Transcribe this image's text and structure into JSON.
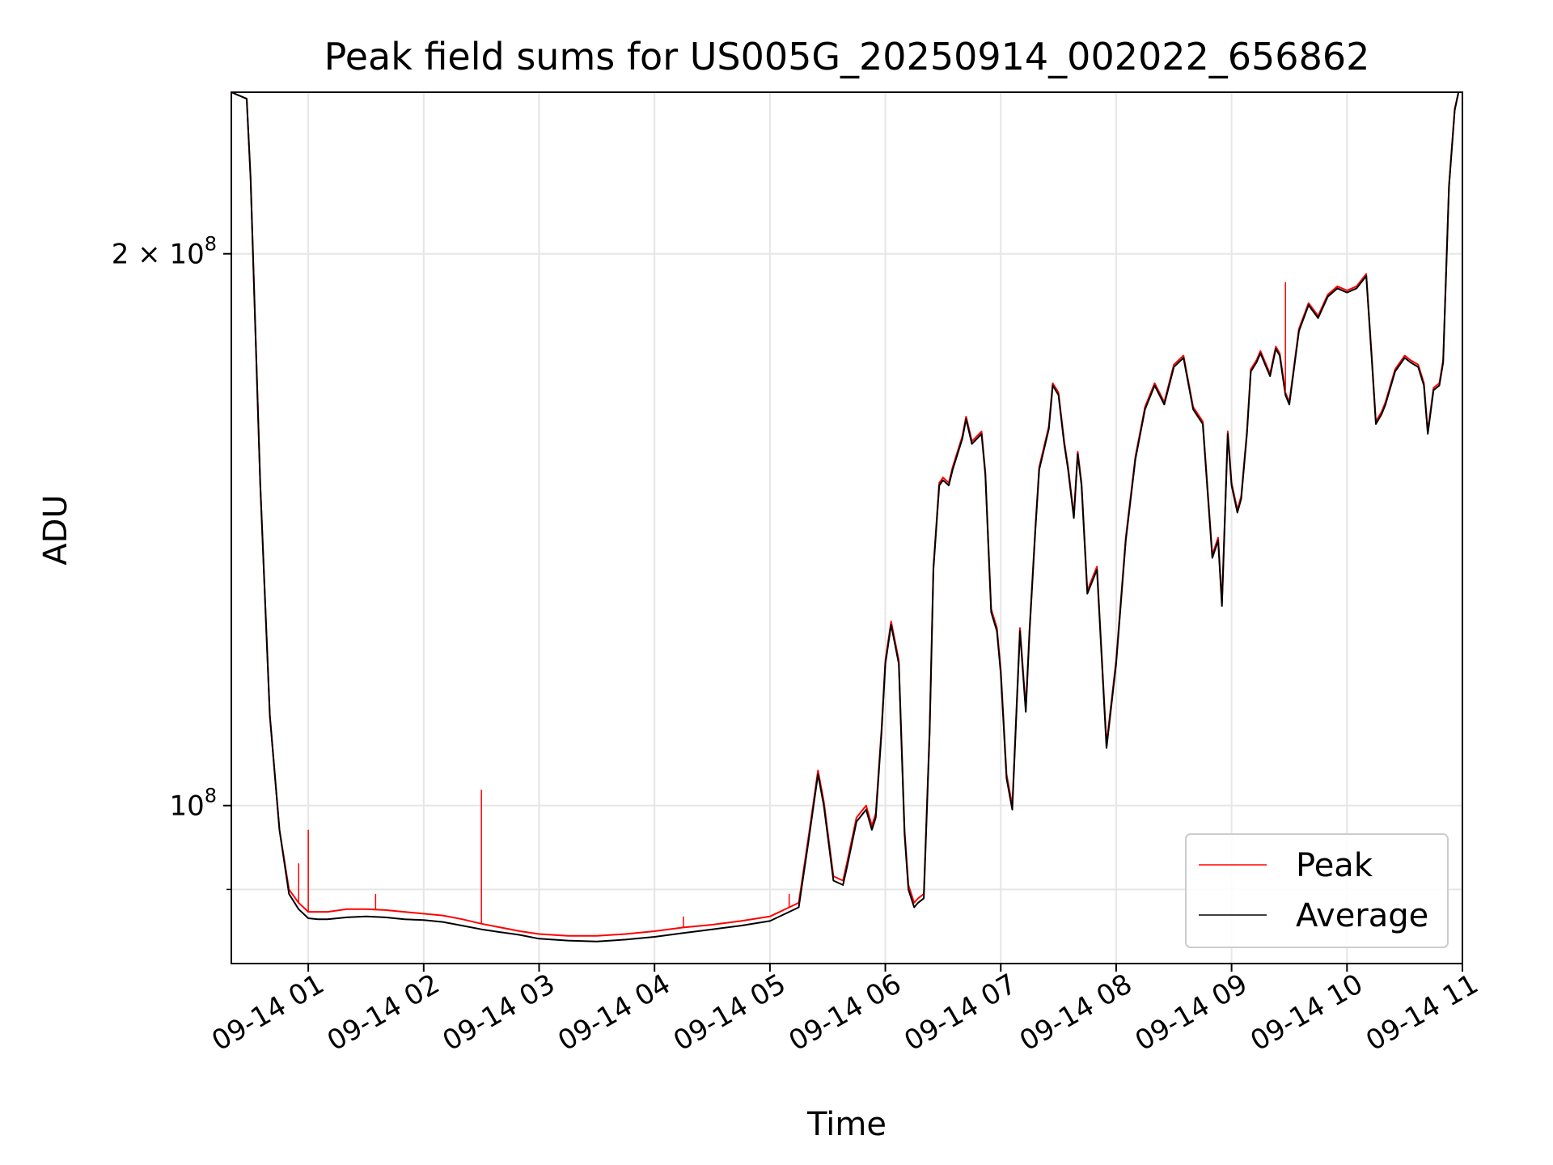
{
  "chart_data": {
    "type": "line",
    "title": "Peak field sums for US005G_20250914_002022_656862",
    "xlabel": "Time",
    "ylabel": "ADU",
    "yscale": "log",
    "ylim": [
      82000000,
      245000000
    ],
    "xlim": [
      "2025-09-14 00:20",
      "2025-09-14 11:00"
    ],
    "grid": true,
    "legend_placement": "lower-right",
    "x_ticks": [
      {
        "at": "2025-09-14 01:00",
        "label": "09-14 01"
      },
      {
        "at": "2025-09-14 02:00",
        "label": "09-14 02"
      },
      {
        "at": "2025-09-14 03:00",
        "label": "09-14 03"
      },
      {
        "at": "2025-09-14 04:00",
        "label": "09-14 04"
      },
      {
        "at": "2025-09-14 05:00",
        "label": "09-14 05"
      },
      {
        "at": "2025-09-14 06:00",
        "label": "09-14 06"
      },
      {
        "at": "2025-09-14 07:00",
        "label": "09-14 07"
      },
      {
        "at": "2025-09-14 08:00",
        "label": "09-14 08"
      },
      {
        "at": "2025-09-14 09:00",
        "label": "09-14 09"
      },
      {
        "at": "2025-09-14 10:00",
        "label": "09-14 10"
      },
      {
        "at": "2025-09-14 11:00",
        "label": "09-14 11"
      }
    ],
    "y_ticks": [
      {
        "value": 200000000,
        "label_base": "2 × 10",
        "label_exp": "8"
      },
      {
        "value": 100000000,
        "label_base": "10",
        "label_exp": "8"
      }
    ],
    "y_minor_ticks": [
      90000000
    ],
    "series": [
      {
        "name": "Peak",
        "color": "#ff0000",
        "x": [
          "00:20",
          "00:28",
          "00:30",
          "00:35",
          "00:40",
          "00:45",
          "00:50",
          "00:55",
          "01:00",
          "01:05",
          "01:10",
          "01:20",
          "01:30",
          "01:40",
          "01:50",
          "02:00",
          "02:10",
          "02:20",
          "02:30",
          "02:40",
          "02:50",
          "03:00",
          "03:15",
          "03:30",
          "03:45",
          "04:00",
          "04:15",
          "04:30",
          "04:45",
          "05:00",
          "05:10",
          "05:15",
          "05:20",
          "05:25",
          "05:28",
          "05:33",
          "05:38",
          "05:40",
          "05:45",
          "05:50",
          "05:53",
          "05:55",
          "05:58",
          "06:00",
          "06:03",
          "06:07",
          "06:10",
          "06:12",
          "06:15",
          "06:17",
          "06:20",
          "06:23",
          "06:25",
          "06:28",
          "06:30",
          "06:33",
          "06:35",
          "06:40",
          "06:42",
          "06:45",
          "06:50",
          "06:52",
          "06:55",
          "06:58",
          "07:00",
          "07:03",
          "07:06",
          "07:10",
          "07:13",
          "07:15",
          "07:18",
          "07:20",
          "07:25",
          "07:27",
          "07:30",
          "07:33",
          "07:35",
          "07:38",
          "07:40",
          "07:42",
          "07:45",
          "07:50",
          "07:55",
          "08:00",
          "08:05",
          "08:10",
          "08:15",
          "08:20",
          "08:25",
          "08:30",
          "08:35",
          "08:40",
          "08:45",
          "08:50",
          "08:53",
          "08:55",
          "08:58",
          "09:00",
          "09:03",
          "09:05",
          "09:08",
          "09:10",
          "09:13",
          "09:15",
          "09:20",
          "09:23",
          "09:25",
          "09:28",
          "09:30",
          "09:35",
          "09:40",
          "09:45",
          "09:50",
          "09:55",
          "10:00",
          "10:05",
          "10:10",
          "10:13",
          "10:15",
          "10:18",
          "10:20",
          "10:25",
          "10:30",
          "10:33",
          "10:37",
          "10:40",
          "10:42",
          "10:45",
          "10:48",
          "10:50",
          "10:53",
          "10:56",
          "10:58",
          "11:00"
        ],
        "values": [
          245000000,
          243000000,
          220000000,
          150000000,
          112000000,
          97000000,
          90000000,
          88500000,
          87500000,
          87500000,
          87500000,
          87800000,
          87800000,
          87700000,
          87500000,
          87300000,
          87100000,
          86700000,
          86200000,
          85800000,
          85400000,
          85100000,
          84900000,
          84900000,
          85100000,
          85400000,
          85800000,
          86100000,
          86500000,
          87000000,
          88000000,
          88500000,
          96000000,
          104500000,
          100500000,
          91500000,
          91000000,
          93000000,
          98500000,
          100000000,
          97500000,
          99000000,
          110000000,
          120000000,
          126000000,
          120000000,
          97000000,
          90500000,
          88500000,
          89000000,
          89500000,
          110000000,
          135000000,
          150000000,
          151000000,
          150000000,
          153000000,
          159000000,
          163000000,
          158000000,
          160000000,
          152000000,
          128000000,
          125000000,
          118500000,
          104000000,
          100000000,
          125000000,
          113000000,
          125000000,
          142000000,
          153000000,
          161000000,
          170000000,
          168000000,
          158000000,
          153000000,
          144000000,
          156000000,
          150000000,
          131000000,
          135000000,
          108000000,
          120000000,
          140000000,
          155000000,
          165000000,
          170000000,
          166000000,
          174000000,
          176000000,
          165000000,
          162000000,
          137000000,
          140000000,
          129000000,
          160000000,
          150000000,
          145000000,
          147500000,
          160000000,
          173000000,
          175000000,
          177000000,
          172000000,
          178000000,
          176500000,
          168000000,
          166000000,
          182000000,
          188000000,
          185000000,
          190000000,
          192000000,
          191000000,
          192000000,
          195000000,
          175000000,
          162000000,
          164000000,
          166000000,
          173000000,
          176000000,
          175000000,
          174000000,
          170000000,
          160000000,
          169000000,
          170000000,
          175000000,
          218000000,
          240000000,
          245000000,
          245000000
        ]
      },
      {
        "name": "Average",
        "color": "#000000",
        "x": [
          "00:20",
          "00:28",
          "00:30",
          "00:35",
          "00:40",
          "00:45",
          "00:50",
          "00:55",
          "01:00",
          "01:05",
          "01:10",
          "01:20",
          "01:30",
          "01:40",
          "01:50",
          "02:00",
          "02:10",
          "02:20",
          "02:30",
          "02:40",
          "02:50",
          "03:00",
          "03:15",
          "03:30",
          "03:45",
          "04:00",
          "04:15",
          "04:30",
          "04:45",
          "05:00",
          "05:10",
          "05:15",
          "05:20",
          "05:25",
          "05:28",
          "05:33",
          "05:38",
          "05:40",
          "05:45",
          "05:50",
          "05:53",
          "05:55",
          "05:58",
          "06:00",
          "06:03",
          "06:07",
          "06:10",
          "06:12",
          "06:15",
          "06:17",
          "06:20",
          "06:23",
          "06:25",
          "06:28",
          "06:30",
          "06:33",
          "06:35",
          "06:40",
          "06:42",
          "06:45",
          "06:50",
          "06:52",
          "06:55",
          "06:58",
          "07:00",
          "07:03",
          "07:06",
          "07:10",
          "07:13",
          "07:15",
          "07:18",
          "07:20",
          "07:25",
          "07:27",
          "07:30",
          "07:33",
          "07:35",
          "07:38",
          "07:40",
          "07:42",
          "07:45",
          "07:50",
          "07:55",
          "08:00",
          "08:05",
          "08:10",
          "08:15",
          "08:20",
          "08:25",
          "08:30",
          "08:35",
          "08:40",
          "08:45",
          "08:50",
          "08:53",
          "08:55",
          "08:58",
          "09:00",
          "09:03",
          "09:05",
          "09:08",
          "09:10",
          "09:13",
          "09:15",
          "09:20",
          "09:23",
          "09:25",
          "09:28",
          "09:30",
          "09:35",
          "09:40",
          "09:45",
          "09:50",
          "09:55",
          "10:00",
          "10:05",
          "10:10",
          "10:13",
          "10:15",
          "10:18",
          "10:20",
          "10:25",
          "10:30",
          "10:33",
          "10:37",
          "10:40",
          "10:42",
          "10:45",
          "10:48",
          "10:50",
          "10:53",
          "10:56",
          "10:58",
          "11:00"
        ],
        "values": [
          245000000,
          243000000,
          220000000,
          150000000,
          112000000,
          97000000,
          89500000,
          87800000,
          86800000,
          86700000,
          86700000,
          86900000,
          87000000,
          86900000,
          86700000,
          86600000,
          86400000,
          86000000,
          85600000,
          85300000,
          85000000,
          84600000,
          84400000,
          84300000,
          84500000,
          84800000,
          85200000,
          85600000,
          86000000,
          86500000,
          87500000,
          88000000,
          95500000,
          104000000,
          100000000,
          91000000,
          90500000,
          92500000,
          98000000,
          99500000,
          97000000,
          98500000,
          109500000,
          119500000,
          125500000,
          119500000,
          96500000,
          90000000,
          88000000,
          88500000,
          89000000,
          109500000,
          134500000,
          149500000,
          150500000,
          149500000,
          152500000,
          158500000,
          162500000,
          157500000,
          159500000,
          151500000,
          127500000,
          124500000,
          118000000,
          103500000,
          99500000,
          124500000,
          112500000,
          124500000,
          141500000,
          152500000,
          160500000,
          169500000,
          167500000,
          157500000,
          152500000,
          143500000,
          155500000,
          149500000,
          130500000,
          134500000,
          107500000,
          119500000,
          139500000,
          154500000,
          164500000,
          169500000,
          165500000,
          173500000,
          175500000,
          164500000,
          161500000,
          136500000,
          139500000,
          128500000,
          159500000,
          149500000,
          144500000,
          147000000,
          159500000,
          172500000,
          174500000,
          176500000,
          171500000,
          177500000,
          176000000,
          167500000,
          165500000,
          181500000,
          187500000,
          184500000,
          189500000,
          191500000,
          190500000,
          191500000,
          194500000,
          174500000,
          161500000,
          163500000,
          165500000,
          172500000,
          175500000,
          174500000,
          173500000,
          169500000,
          159500000,
          168500000,
          169500000,
          174500000,
          217500000,
          239500000,
          245000000,
          245000000
        ]
      }
    ],
    "annotations": {
      "peak_spikes": [
        {
          "x": "00:55",
          "value": 93000000
        },
        {
          "x": "01:00",
          "value": 97000000
        },
        {
          "x": "01:35",
          "value": 89500000
        },
        {
          "x": "02:30",
          "value": 102000000
        },
        {
          "x": "04:15",
          "value": 87000000
        },
        {
          "x": "05:10",
          "value": 89500000
        },
        {
          "x": "09:28",
          "value": 193000000
        }
      ]
    }
  }
}
